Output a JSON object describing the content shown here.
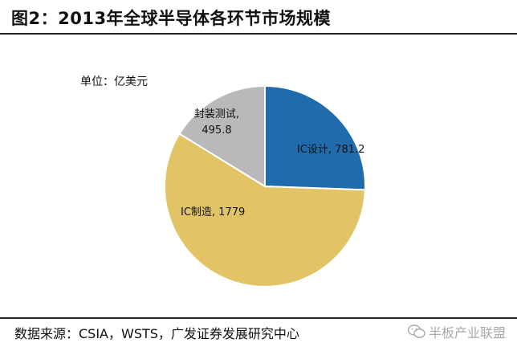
{
  "header": {
    "title": "图2：2013年全球半导体各环节市场规模"
  },
  "unit_label": "单位：亿美元",
  "footer": {
    "source": "数据来源：CSIA，WSTS，广发证券发展研究中心",
    "watermark": "半板产业联盟",
    "watermark_icon": "wechat-icon"
  },
  "colors": {
    "ic_design": "#1f6bab",
    "ic_manufacturing": "#e2c466",
    "packaging_testing": "#b9b9bb"
  },
  "chart_data": {
    "type": "pie",
    "title": "",
    "slices": [
      {
        "name": "IC设计",
        "value": 781.2,
        "label": "IC设计, 781.2",
        "color": "#1f6bab"
      },
      {
        "name": "IC制造",
        "value": 1779,
        "label": "IC制造, 1779",
        "color": "#e2c466"
      },
      {
        "name": "封装测试",
        "value": 495.8,
        "label_lines": [
          "封装测试,",
          "495.8"
        ],
        "color": "#b9b9bb"
      }
    ],
    "start_angle": "12 o'clock",
    "direction": "clockwise"
  }
}
